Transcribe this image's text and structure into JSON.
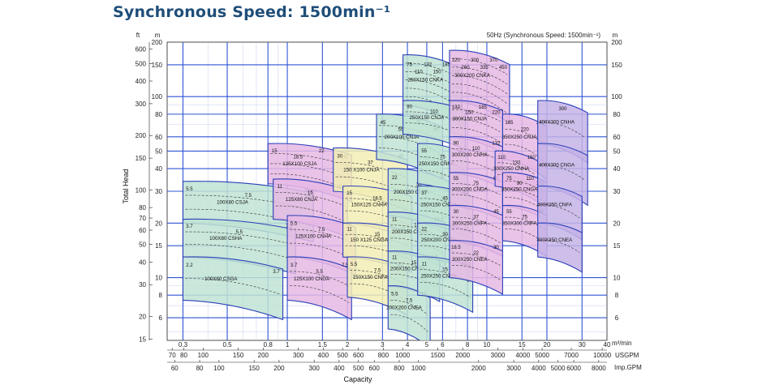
{
  "page": {
    "title": "Synchronous Speed: 1500min⁻¹"
  },
  "chart_data": {
    "type": "area",
    "note": "50Hz (Synchronous Speed: 1500min⁻¹)",
    "xlabel": "Capacity",
    "ylabel": "Total Head",
    "x_unit_label": "m³/min",
    "y_left_outer_unit": "ft",
    "y_left_inner_unit": "m",
    "y_right_unit": "m",
    "x_scale": "log",
    "y_scale": "log",
    "xlim": [
      0.25,
      40
    ],
    "ylim": [
      4.5,
      200
    ],
    "x_ticks_m3min": [
      0.3,
      0.5,
      0.8,
      1,
      1.5,
      2,
      3,
      4,
      5,
      6,
      8,
      10,
      15,
      20,
      30,
      40
    ],
    "x_ticks_usgpm": [
      {
        "v": 70,
        "label": "70"
      },
      {
        "v": 80,
        "label": "80"
      },
      {
        "v": 100,
        "label": "100"
      },
      {
        "v": 150,
        "label": "150"
      },
      {
        "v": 200,
        "label": "200"
      },
      {
        "v": 300,
        "label": "300"
      },
      {
        "v": 400,
        "label": "400"
      },
      {
        "v": 500,
        "label": "500"
      },
      {
        "v": 600,
        "label": "600"
      },
      {
        "v": 800,
        "label": "800"
      },
      {
        "v": 1000,
        "label": "1000"
      },
      {
        "v": 1500,
        "label": "1500"
      },
      {
        "v": 2000,
        "label": "2000"
      },
      {
        "v": 3000,
        "label": "3000"
      },
      {
        "v": 4000,
        "label": "4000"
      },
      {
        "v": 5000,
        "label": "5000"
      },
      {
        "v": 7000,
        "label": "7000"
      },
      {
        "v": 10000,
        "label": "10000"
      }
    ],
    "x_unit_usgpm": "USGPM",
    "x_ticks_impgpm": [
      {
        "v": 60,
        "label": "60"
      },
      {
        "v": 80,
        "label": "80"
      },
      {
        "v": 100,
        "label": "100"
      },
      {
        "v": 150,
        "label": "150"
      },
      {
        "v": 200,
        "label": "200"
      },
      {
        "v": 300,
        "label": "300"
      },
      {
        "v": 400,
        "label": "400"
      },
      {
        "v": 500,
        "label": "500"
      },
      {
        "v": 600,
        "label": "600"
      },
      {
        "v": 800,
        "label": "800"
      },
      {
        "v": 1000,
        "label": "1000"
      },
      {
        "v": 2000,
        "label": "2000"
      },
      {
        "v": 3000,
        "label": "3000"
      },
      {
        "v": 4000,
        "label": "4000"
      },
      {
        "v": 5000,
        "label": "5000"
      },
      {
        "v": 6000,
        "label": "6000"
      },
      {
        "v": 8000,
        "label": "8000"
      }
    ],
    "x_unit_impgpm": "Imp.GPM",
    "y_ticks_m": [
      6,
      8,
      10,
      15,
      20,
      30,
      40,
      50,
      60,
      80,
      100,
      150,
      200
    ],
    "y_ticks_ft": [
      15,
      20,
      30,
      40,
      50,
      60,
      70,
      80,
      100,
      150,
      200,
      300,
      400,
      500,
      600
    ],
    "grid": true,
    "regions": [
      {
        "name": "100X80 CSJA",
        "color": "#bfe3d4",
        "x0": 0.3,
        "x1": 1.35,
        "y_lo": 20,
        "y_hi": 34,
        "motor_kw": [
          "5.5",
          "7.5",
          "11"
        ]
      },
      {
        "name": "100X80 CSHA",
        "color": "#bfe3d4",
        "x0": 0.3,
        "x1": 1.1,
        "y_lo": 13,
        "y_hi": 21,
        "motor_kw": [
          "3.7",
          "5.5",
          "7.5"
        ]
      },
      {
        "name": "100X80 CSGA",
        "color": "#bfe3d4",
        "x0": 0.3,
        "x1": 0.95,
        "y_lo": 7.5,
        "y_hi": 13,
        "motor_kw": [
          "2.2",
          "3.7"
        ]
      },
      {
        "name": "125X100 CSJA",
        "color": "#e6b9e4",
        "x0": 0.8,
        "x1": 2.1,
        "y_lo": 33,
        "y_hi": 55,
        "motor_kw": [
          "15",
          "18.5",
          "22",
          "30"
        ]
      },
      {
        "name": "125X80 CNJA",
        "color": "#e6b9e4",
        "x0": 0.85,
        "x1": 2.0,
        "y_lo": 21,
        "y_hi": 35,
        "motor_kw": [
          "11",
          "15",
          "18.5"
        ]
      },
      {
        "name": "125X100 CNHA",
        "color": "#e6b9e4",
        "x0": 1.0,
        "x1": 2.2,
        "y_lo": 13,
        "y_hi": 22,
        "motor_kw": [
          "5.5",
          "7.5",
          "11"
        ]
      },
      {
        "name": "125X100 CNGA",
        "color": "#e6b9e4",
        "x0": 1.0,
        "x1": 2.1,
        "y_lo": 7.5,
        "y_hi": 13,
        "motor_kw": [
          "3.7",
          "5.5",
          "7.5"
        ]
      },
      {
        "name": "150 X100 CNJA",
        "color": "#f2edb5",
        "x0": 1.7,
        "x1": 4.0,
        "y_lo": 30,
        "y_hi": 52,
        "motor_kw": [
          "30",
          "37",
          "45"
        ]
      },
      {
        "name": "150X125 CNHA",
        "color": "#f2edb5",
        "x0": 1.9,
        "x1": 4.2,
        "y_lo": 20,
        "y_hi": 32,
        "motor_kw": [
          "15",
          "18.5",
          "22"
        ]
      },
      {
        "name": "150 X125 CNGA",
        "color": "#f2edb5",
        "x0": 1.9,
        "x1": 4.2,
        "y_lo": 13,
        "y_hi": 20,
        "motor_kw": [
          "11",
          "15",
          "18.5"
        ]
      },
      {
        "name": "150X150 CNFA",
        "color": "#f2edb5",
        "x0": 2.0,
        "x1": 4.0,
        "y_lo": 7.8,
        "y_hi": 13,
        "motor_kw": [
          "5.5",
          "7.5",
          "11"
        ]
      },
      {
        "name": "200X100 CNJA",
        "color": "#bfe3d4",
        "x0": 2.8,
        "x1": 6.0,
        "y_lo": 45,
        "y_hi": 80,
        "motor_kw": [
          "45",
          "55",
          "75",
          "90"
        ]
      },
      {
        "name": "200X150 CNHA",
        "color": "#bfe3d4",
        "x0": 3.2,
        "x1": 6.5,
        "y_lo": 22,
        "y_hi": 40,
        "motor_kw": [
          "22",
          "30",
          "37"
        ]
      },
      {
        "name": "200X150 CNGA",
        "color": "#bfe3d4",
        "x0": 3.2,
        "x1": 6.2,
        "y_lo": 14,
        "y_hi": 23,
        "motor_kw": [
          "11",
          "15",
          "18.5"
        ]
      },
      {
        "name": "200X150 CNFA",
        "color": "#bfe3d4",
        "x0": 3.2,
        "x1": 5.8,
        "y_lo": 9,
        "y_hi": 14,
        "motor_kw": [
          "11",
          "15",
          "18.5"
        ]
      },
      {
        "name": "200X200 CNEA",
        "color": "#bfe3d4",
        "x0": 3.2,
        "x1": 5.2,
        "y_lo": 5.2,
        "y_hi": 9,
        "motor_kw": [
          "5.5",
          "7.5",
          "11"
        ]
      },
      {
        "name": "250X150 CNKA",
        "color": "#bfe3d4",
        "x0": 3.8,
        "x1": 7.5,
        "y_lo": 90,
        "y_hi": 170,
        "motor_kw": [
          "75",
          "110",
          "132",
          "150",
          "185",
          "220"
        ]
      },
      {
        "name": "250X150 CNJA",
        "color": "#bfe3d4",
        "x0": 3.8,
        "x1": 7.8,
        "y_lo": 62,
        "y_hi": 95,
        "motor_kw": [
          "90",
          "110",
          "132"
        ]
      },
      {
        "name": "250X150 CNHA",
        "color": "#bfe3d4",
        "x0": 4.5,
        "x1": 8.0,
        "y_lo": 33,
        "y_hi": 55,
        "motor_kw": [
          "55",
          "75",
          "90"
        ]
      },
      {
        "name": "250X150 CNGA",
        "color": "#bfe3d4",
        "x0": 4.5,
        "x1": 8.5,
        "y_lo": 20,
        "y_hi": 32,
        "motor_kw": [
          "37",
          "45",
          "55"
        ]
      },
      {
        "name": "250X200 CNFA",
        "color": "#bfe3d4",
        "x0": 4.5,
        "x1": 8.5,
        "y_lo": 13,
        "y_hi": 20,
        "motor_kw": [
          "22",
          "30",
          "37"
        ]
      },
      {
        "name": "250X250 CNEA",
        "color": "#bfe3d4",
        "x0": 4.5,
        "x1": 8.5,
        "y_lo": 8,
        "y_hi": 13,
        "motor_kw": [
          "11",
          "15",
          "18.5"
        ]
      },
      {
        "name": "300X200 CNKA",
        "color": "#e6b9e4",
        "x0": 6.5,
        "x1": 13.0,
        "y_lo": 95,
        "y_hi": 180,
        "motor_kw": [
          "220",
          "260",
          "300",
          "335",
          "370",
          "450"
        ]
      },
      {
        "name": "300X150 CNJA",
        "color": "#e6b9e4",
        "x0": 6.5,
        "x1": 12.0,
        "y_lo": 60,
        "y_hi": 95,
        "motor_kw": [
          "132",
          "150",
          "185",
          "220"
        ]
      },
      {
        "name": "300X200 CNHA",
        "color": "#e6b9e4",
        "x0": 6.5,
        "x1": 12.0,
        "y_lo": 38,
        "y_hi": 60,
        "motor_kw": [
          "90",
          "110",
          "132"
        ]
      },
      {
        "name": "300X200 CNGA",
        "color": "#e6b9e4",
        "x0": 6.5,
        "x1": 12.0,
        "y_lo": 25,
        "y_hi": 38,
        "motor_kw": [
          "55",
          "75",
          "90"
        ]
      },
      {
        "name": "300X250 CNFA",
        "color": "#e6b9e4",
        "x0": 6.5,
        "x1": 12.0,
        "y_lo": 16,
        "y_hi": 25,
        "motor_kw": [
          "30",
          "37",
          "45"
        ]
      },
      {
        "name": "300X250 CNEA",
        "color": "#e6b9e4",
        "x0": 6.5,
        "x1": 12.0,
        "y_lo": 10,
        "y_hi": 16,
        "motor_kw": [
          "18.5",
          "22",
          "30"
        ]
      },
      {
        "name": "350X250 CNJA",
        "color": "#e6b9e4",
        "x0": 12.0,
        "x1": 20.0,
        "y_lo": 45,
        "y_hi": 80,
        "motor_kw": [
          "185",
          "220",
          "260"
        ]
      },
      {
        "name": "300X250 CNHA",
        "color": "#e6b9e4",
        "x0": 11.0,
        "x1": 18.0,
        "y_lo": 32,
        "y_hi": 50,
        "motor_kw": [
          "110",
          "132",
          "150"
        ]
      },
      {
        "name": "350X250 CNGA",
        "color": "#e6b9e4",
        "x0": 12.0,
        "x1": 20.0,
        "y_lo": 25,
        "y_hi": 38,
        "motor_kw": [
          "75",
          "90",
          "110",
          "132"
        ]
      },
      {
        "name": "350X300 CNFA",
        "color": "#e6b9e4",
        "x0": 12.0,
        "x1": 20.0,
        "y_lo": 16,
        "y_hi": 25,
        "motor_kw": [
          "55",
          "75",
          "90"
        ]
      },
      {
        "name": "400X300 CNHA",
        "color": "#c5b3e6",
        "x0": 18.0,
        "x1": 32.0,
        "y_lo": 55,
        "y_hi": 95,
        "motor_kw": [
          "300"
        ]
      },
      {
        "name": "400X300 CNGA",
        "color": "#c5b3e6",
        "x0": 18.0,
        "x1": 32.0,
        "y_lo": 32,
        "y_hi": 55,
        "motor_kw": []
      },
      {
        "name": "400X350 CNFA",
        "color": "#c5b3e6",
        "x0": 18.0,
        "x1": 30.0,
        "y_lo": 20,
        "y_hi": 32,
        "motor_kw": []
      },
      {
        "name": "400X350 CNEA",
        "color": "#c5b3e6",
        "x0": 18.0,
        "x1": 30.0,
        "y_lo": 13,
        "y_hi": 20,
        "motor_kw": []
      }
    ]
  }
}
